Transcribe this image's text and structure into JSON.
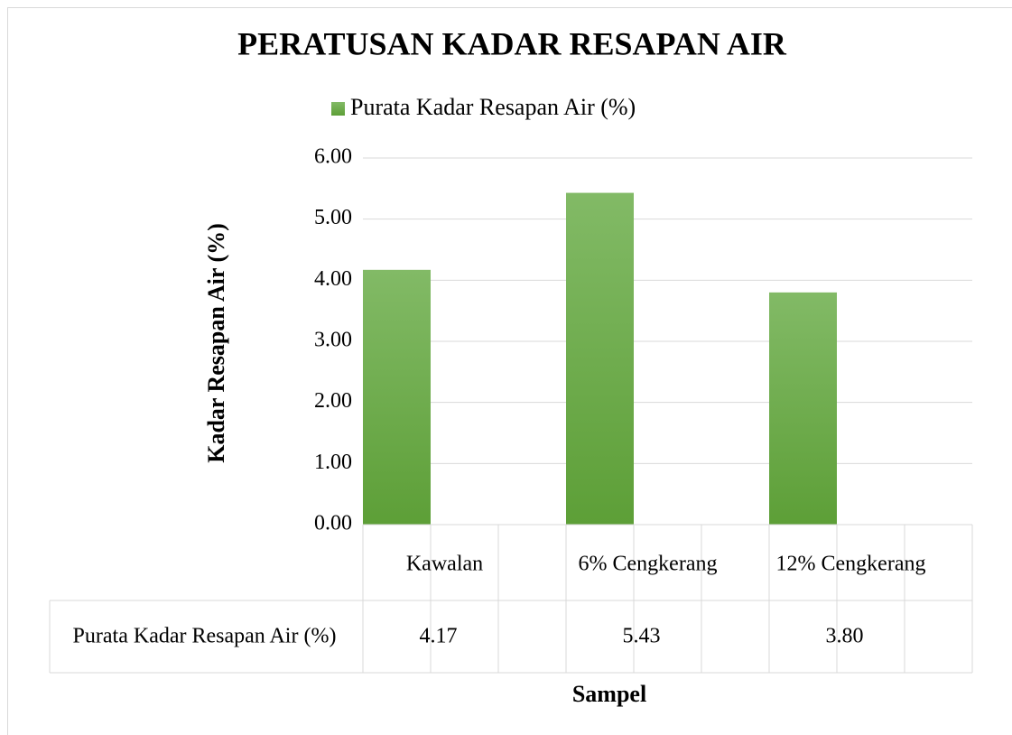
{
  "chart_data": {
    "type": "bar",
    "title": "PERATUSAN KADAR RESAPAN AIR",
    "x_label": "Sampel",
    "y_label": "Kadar Resapan Air (%)",
    "categories": [
      "Kawalan",
      "6% Cengkerang",
      "12% Cengkerang"
    ],
    "series": [
      {
        "name": "Purata Kadar Resapan Air (%)",
        "color": "#70ad47",
        "values": [
          4.17,
          5.43,
          3.8
        ],
        "value_labels": [
          "4.17",
          "5.43",
          "3.80"
        ]
      }
    ],
    "ylim": [
      0,
      6
    ],
    "yticks": [
      {
        "value": 0,
        "label": "0.00"
      },
      {
        "value": 1,
        "label": "1.00"
      },
      {
        "value": 2,
        "label": "2.00"
      },
      {
        "value": 3,
        "label": "3.00"
      },
      {
        "value": 4,
        "label": "4.00"
      },
      {
        "value": 5,
        "label": "5.00"
      },
      {
        "value": 6,
        "label": "6.00"
      }
    ],
    "grid": true,
    "legend": "top",
    "data_table": true
  }
}
